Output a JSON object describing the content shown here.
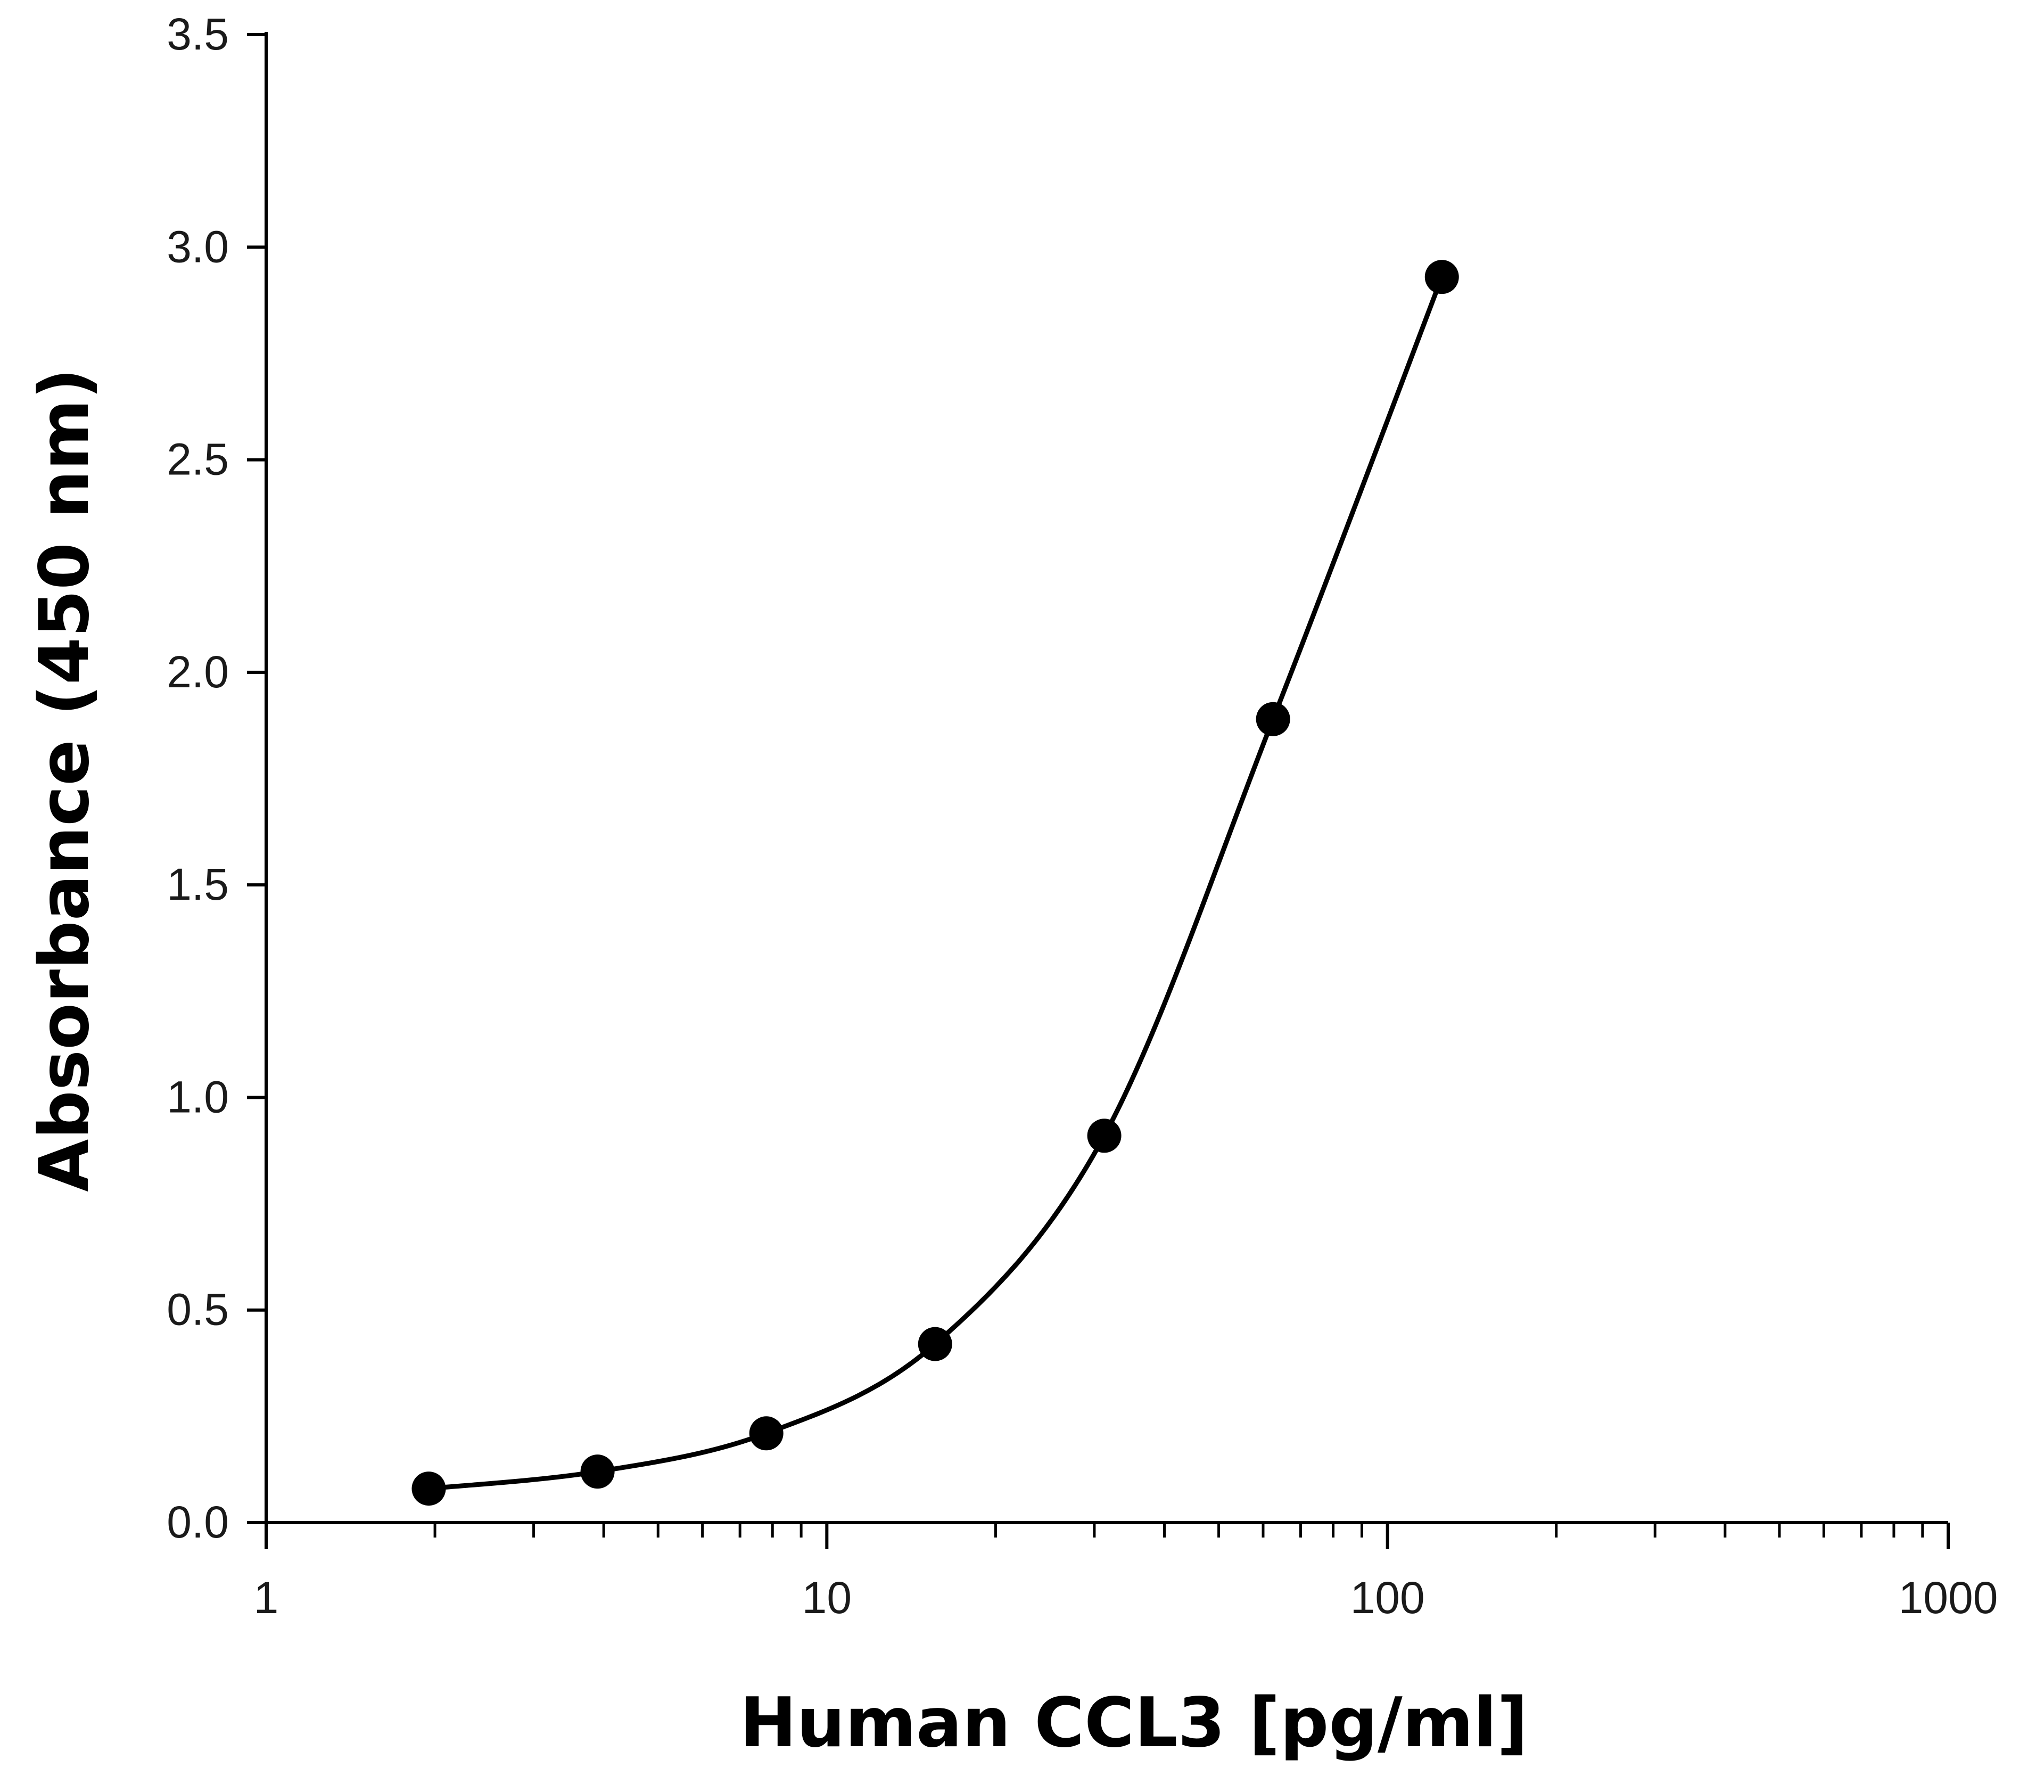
{
  "chart_data": {
    "type": "line",
    "title": "",
    "xlabel": "Human CCL3 [pg/ml]",
    "ylabel": "Absorbance (450 nm)",
    "x_scale": "log",
    "xlim": [
      1,
      1000
    ],
    "ylim": [
      0,
      3.5
    ],
    "x_ticks": [
      1,
      10,
      100,
      1000
    ],
    "x_tick_labels": [
      "1",
      "10",
      "100",
      "1000"
    ],
    "y_ticks": [
      0,
      0.5,
      1.0,
      1.5,
      2.0,
      2.5,
      3.0,
      3.5
    ],
    "y_tick_labels": [
      "0.0",
      "0.5",
      "1.0",
      "1.5",
      "2.0",
      "2.5",
      "3.0",
      "3.5"
    ],
    "grid": false,
    "legend": "none",
    "series": [
      {
        "x": [
          1.95,
          3.9,
          7.8,
          15.6,
          31.25,
          62.5,
          125
        ],
        "y": [
          0.08,
          0.12,
          0.21,
          0.42,
          0.91,
          1.89,
          2.93
        ],
        "color": "#000000",
        "marker": "circle",
        "smooth": true
      }
    ]
  }
}
